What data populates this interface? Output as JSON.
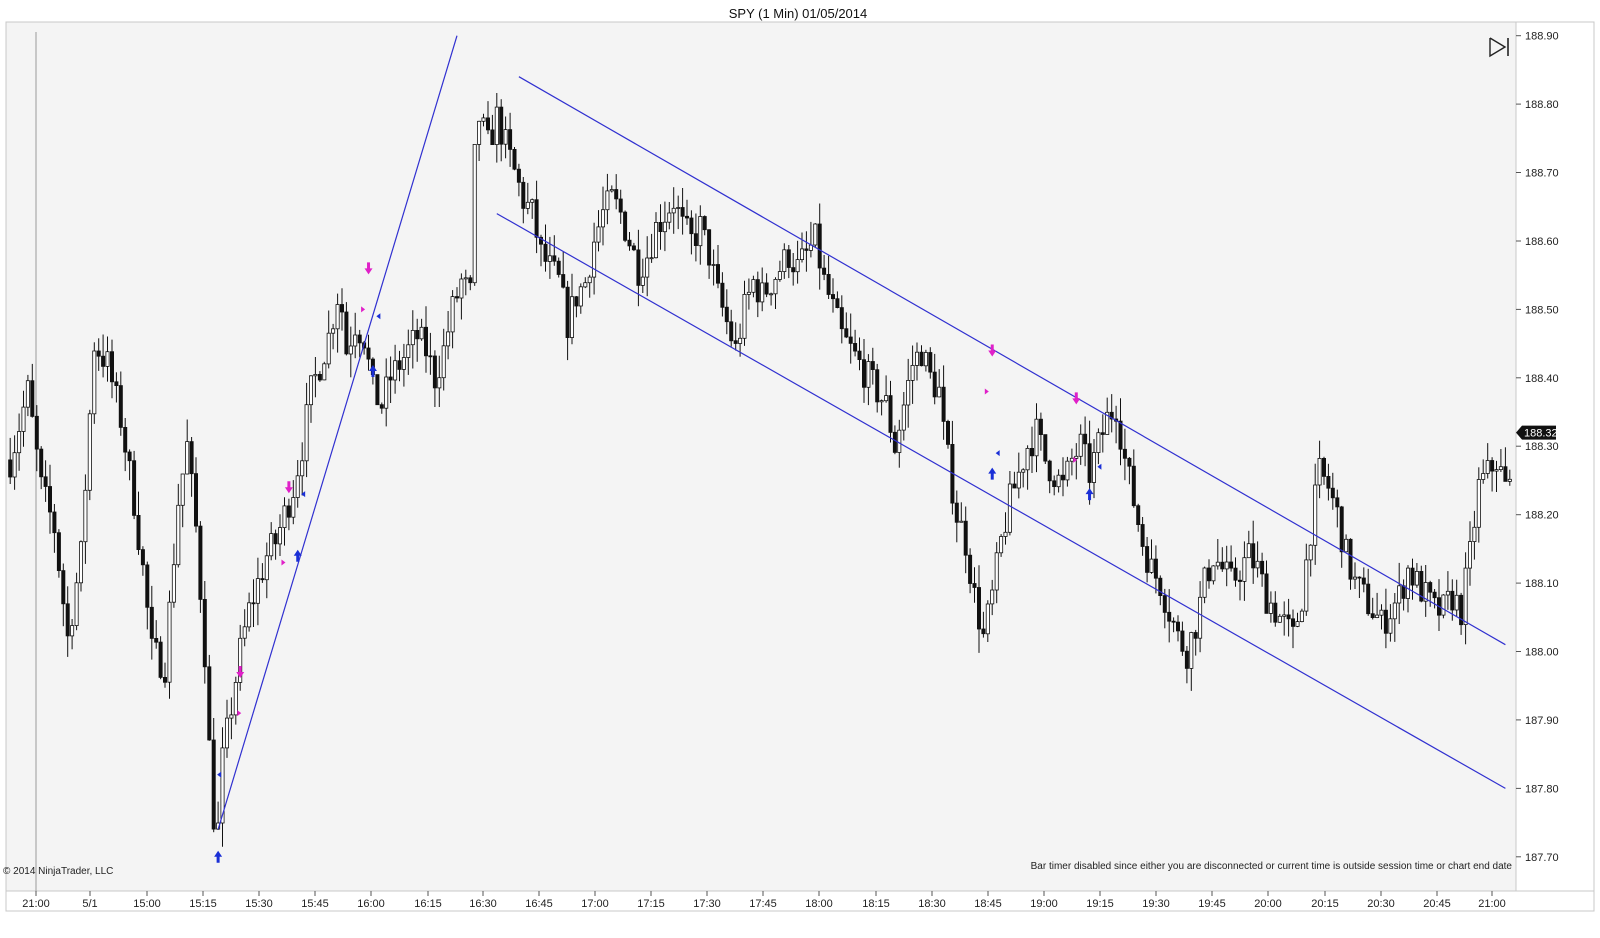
{
  "window": {
    "title": "SPY (1 Min)  01/05/2014"
  },
  "footer": {
    "copyright": "© 2014 NinjaTrader, LLC",
    "bar_timer_notice": "Bar timer disabled since either you are disconnected or current time is outside session time or chart end date"
  },
  "controls": {
    "scroll_end_icon": "skip-to-end-icon"
  },
  "colors": {
    "background": "#f4f4f4",
    "bar": "#111111",
    "trendline": "#3030d0",
    "up_signal": "#1a2fd6",
    "down_signal": "#e020c8",
    "price_marker_bg": "#111111"
  },
  "chart_data": {
    "type": "ohlc",
    "title": "SPY (1 Min)  01/05/2014",
    "symbol": "SPY",
    "interval": "1 Min",
    "last_price": "188.32",
    "ylim": [
      187.65,
      188.92
    ],
    "y_ticks": [
      "188.90",
      "188.80",
      "188.70",
      "188.60",
      "188.50",
      "188.40",
      "188.30",
      "188.20",
      "188.10",
      "188.00",
      "187.90",
      "187.80",
      "187.70"
    ],
    "x_ticks": [
      "21:00",
      "5/1",
      "15:00",
      "15:15",
      "15:30",
      "15:45",
      "16:00",
      "16:15",
      "16:30",
      "16:45",
      "17:00",
      "17:15",
      "17:30",
      "17:45",
      "18:00",
      "18:15",
      "18:30",
      "18:45",
      "19:00",
      "19:15",
      "19:30",
      "19:45",
      "20:00",
      "20:15",
      "20:30",
      "20:45",
      "21:00"
    ],
    "grid": false,
    "price_path": [
      [
        0,
        188.28
      ],
      [
        4,
        188.38
      ],
      [
        7,
        188.24
      ],
      [
        10,
        188.18
      ],
      [
        13,
        188.02
      ],
      [
        16,
        188.14
      ],
      [
        19,
        188.45
      ],
      [
        22,
        188.42
      ],
      [
        25,
        188.34
      ],
      [
        28,
        188.22
      ],
      [
        30,
        188.12
      ],
      [
        32,
        188.0
      ],
      [
        35,
        187.98
      ],
      [
        38,
        188.22
      ],
      [
        40,
        188.3
      ],
      [
        42,
        188.18
      ],
      [
        44,
        188.0
      ],
      [
        45,
        187.86
      ],
      [
        46,
        187.76
      ],
      [
        47,
        187.74
      ],
      [
        48,
        187.84
      ],
      [
        50,
        187.92
      ],
      [
        52,
        188.0
      ],
      [
        54,
        188.06
      ],
      [
        56,
        188.1
      ],
      [
        58,
        188.14
      ],
      [
        60,
        188.16
      ],
      [
        62,
        188.2
      ],
      [
        64,
        188.24
      ],
      [
        66,
        188.3
      ],
      [
        68,
        188.38
      ],
      [
        70,
        188.42
      ],
      [
        72,
        188.46
      ],
      [
        74,
        188.52
      ],
      [
        75,
        188.5
      ],
      [
        76,
        188.44
      ],
      [
        78,
        188.48
      ],
      [
        80,
        188.46
      ],
      [
        82,
        188.38
      ],
      [
        84,
        188.36
      ],
      [
        86,
        188.4
      ],
      [
        88,
        188.42
      ],
      [
        90,
        188.44
      ],
      [
        92,
        188.46
      ],
      [
        94,
        188.44
      ],
      [
        96,
        188.4
      ],
      [
        98,
        188.44
      ],
      [
        100,
        188.5
      ],
      [
        102,
        188.54
      ],
      [
        104,
        188.52
      ],
      [
        105,
        188.72
      ],
      [
        106,
        188.78
      ],
      [
        108,
        188.74
      ],
      [
        110,
        188.78
      ],
      [
        112,
        188.74
      ],
      [
        114,
        188.7
      ],
      [
        116,
        188.66
      ],
      [
        118,
        188.64
      ],
      [
        120,
        188.58
      ],
      [
        122,
        188.56
      ],
      [
        124,
        188.54
      ],
      [
        126,
        188.48
      ],
      [
        128,
        188.52
      ],
      [
        130,
        188.54
      ],
      [
        132,
        188.6
      ],
      [
        134,
        188.64
      ],
      [
        136,
        188.66
      ],
      [
        138,
        188.64
      ],
      [
        140,
        188.6
      ],
      [
        142,
        188.56
      ],
      [
        144,
        188.58
      ],
      [
        146,
        188.62
      ],
      [
        148,
        188.64
      ],
      [
        150,
        188.66
      ],
      [
        152,
        188.62
      ],
      [
        154,
        188.6
      ],
      [
        156,
        188.62
      ],
      [
        158,
        188.58
      ],
      [
        160,
        188.52
      ],
      [
        162,
        188.48
      ],
      [
        164,
        188.44
      ],
      [
        166,
        188.5
      ],
      [
        168,
        188.54
      ],
      [
        170,
        188.52
      ],
      [
        172,
        188.54
      ],
      [
        174,
        188.56
      ],
      [
        176,
        188.58
      ],
      [
        178,
        188.56
      ],
      [
        180,
        188.58
      ],
      [
        182,
        188.6
      ],
      [
        184,
        188.54
      ],
      [
        186,
        188.5
      ],
      [
        188,
        188.46
      ],
      [
        190,
        188.44
      ],
      [
        192,
        188.42
      ],
      [
        194,
        188.4
      ],
      [
        196,
        188.38
      ],
      [
        198,
        188.36
      ],
      [
        200,
        188.3
      ],
      [
        202,
        188.36
      ],
      [
        204,
        188.42
      ],
      [
        206,
        188.44
      ],
      [
        208,
        188.4
      ],
      [
        210,
        188.38
      ],
      [
        211,
        188.32
      ],
      [
        212,
        188.28
      ],
      [
        214,
        188.2
      ],
      [
        216,
        188.16
      ],
      [
        218,
        188.08
      ],
      [
        220,
        188.02
      ],
      [
        222,
        188.08
      ],
      [
        224,
        188.16
      ],
      [
        226,
        188.22
      ],
      [
        228,
        188.26
      ],
      [
        230,
        188.3
      ],
      [
        232,
        188.32
      ],
      [
        234,
        188.28
      ],
      [
        236,
        188.26
      ],
      [
        238,
        188.24
      ],
      [
        240,
        188.28
      ],
      [
        242,
        188.3
      ],
      [
        244,
        188.26
      ],
      [
        246,
        188.3
      ],
      [
        248,
        188.34
      ],
      [
        250,
        188.36
      ],
      [
        252,
        188.28
      ],
      [
        254,
        188.22
      ],
      [
        256,
        188.16
      ],
      [
        258,
        188.12
      ],
      [
        260,
        188.1
      ],
      [
        262,
        188.06
      ],
      [
        264,
        188.02
      ],
      [
        266,
        188.0
      ],
      [
        268,
        188.04
      ],
      [
        270,
        188.1
      ],
      [
        272,
        188.14
      ],
      [
        274,
        188.12
      ],
      [
        276,
        188.1
      ],
      [
        278,
        188.12
      ],
      [
        280,
        188.14
      ],
      [
        282,
        188.12
      ],
      [
        284,
        188.08
      ],
      [
        286,
        188.06
      ],
      [
        288,
        188.04
      ],
      [
        290,
        188.02
      ],
      [
        292,
        188.08
      ],
      [
        294,
        188.18
      ],
      [
        296,
        188.26
      ],
      [
        298,
        188.24
      ],
      [
        300,
        188.2
      ],
      [
        302,
        188.14
      ],
      [
        304,
        188.1
      ],
      [
        306,
        188.08
      ],
      [
        308,
        188.06
      ],
      [
        310,
        188.04
      ],
      [
        312,
        188.06
      ],
      [
        314,
        188.08
      ],
      [
        316,
        188.12
      ],
      [
        318,
        188.1
      ],
      [
        320,
        188.08
      ],
      [
        322,
        188.06
      ],
      [
        324,
        188.06
      ],
      [
        326,
        188.08
      ],
      [
        328,
        188.06
      ],
      [
        330,
        188.14
      ],
      [
        332,
        188.24
      ],
      [
        334,
        188.26
      ],
      [
        336,
        188.28
      ],
      [
        338,
        188.24
      ]
    ],
    "trendlines": [
      {
        "from": [
          47,
          187.74
        ],
        "to": [
          101,
          188.9
        ]
      },
      {
        "from": [
          115,
          188.84
        ],
        "to": [
          338,
          188.01
        ]
      },
      {
        "from": [
          110,
          188.64
        ],
        "to": [
          338,
          187.8
        ]
      }
    ],
    "buy_signals": [
      [
        47,
        187.7
      ],
      [
        82,
        188.41
      ],
      [
        65,
        188.14
      ],
      [
        222,
        188.26
      ],
      [
        244,
        188.23
      ]
    ],
    "sell_signals": [
      [
        52,
        187.97
      ],
      [
        81,
        188.56
      ],
      [
        63,
        188.24
      ],
      [
        222,
        188.44
      ],
      [
        241,
        188.37
      ]
    ],
    "entry_marks": [
      {
        "side": "buy",
        "at": [
          47,
          187.82
        ]
      },
      {
        "side": "sell",
        "at": [
          52,
          187.91
        ]
      },
      {
        "side": "buy",
        "at": [
          83,
          188.49
        ]
      },
      {
        "side": "sell",
        "at": [
          80,
          188.5
        ]
      },
      {
        "side": "buy",
        "at": [
          66,
          188.23
        ]
      },
      {
        "side": "sell",
        "at": [
          62,
          188.13
        ]
      },
      {
        "side": "sell",
        "at": [
          221,
          188.38
        ]
      },
      {
        "side": "buy",
        "at": [
          223,
          188.29
        ]
      },
      {
        "side": "sell",
        "at": [
          241,
          188.28
        ]
      },
      {
        "side": "buy",
        "at": [
          246,
          188.27
        ]
      }
    ]
  }
}
